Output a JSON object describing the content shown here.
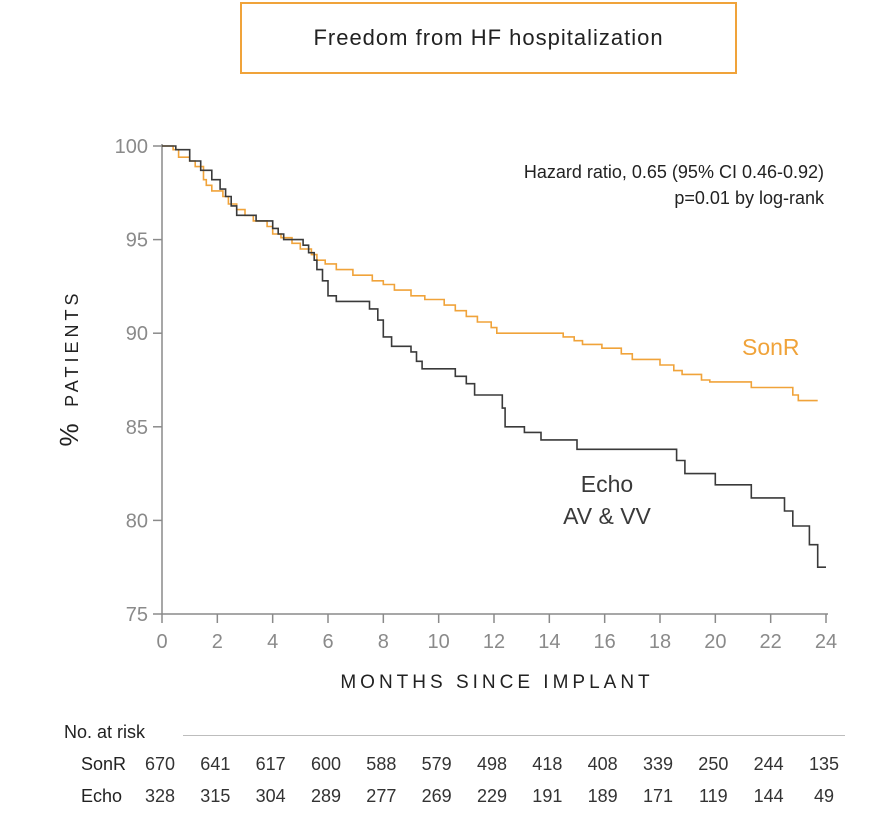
{
  "title": "Freedom from HF hospitalization",
  "annotation": {
    "line1": "Hazard ratio, 0.65 (95% CI 0.46-0.92)",
    "line2": "p=0.01 by log-rank"
  },
  "colors": {
    "sonr": "#f0a33a",
    "echo": "#3a3a3a",
    "axis": "#8a8a8a",
    "title_border": "#f0a33a"
  },
  "chart_data": {
    "type": "line",
    "xlabel": "MONTHS SINCE IMPLANT",
    "ylabel_symbol": "%",
    "ylabel": "PATIENTS",
    "xlim": [
      0,
      24
    ],
    "ylim": [
      75,
      100
    ],
    "x_ticks": [
      "0",
      "2",
      "4",
      "6",
      "8",
      "10",
      "12",
      "14",
      "16",
      "18",
      "20",
      "22",
      "24"
    ],
    "y_ticks": [
      "75",
      "80",
      "85",
      "90",
      "95",
      "100"
    ],
    "grid": false,
    "series": [
      {
        "name": "SonR",
        "color": "#f0a33a",
        "step": true,
        "points": [
          [
            0,
            100
          ],
          [
            0.4,
            99.8
          ],
          [
            0.6,
            99.4
          ],
          [
            1.0,
            99.2
          ],
          [
            1.2,
            98.9
          ],
          [
            1.5,
            98.2
          ],
          [
            1.6,
            97.9
          ],
          [
            1.8,
            97.6
          ],
          [
            2.2,
            97.3
          ],
          [
            2.4,
            96.9
          ],
          [
            2.7,
            96.6
          ],
          [
            3.0,
            96.3
          ],
          [
            3.3,
            96.0
          ],
          [
            3.8,
            95.7
          ],
          [
            4.0,
            95.3
          ],
          [
            4.3,
            95.1
          ],
          [
            4.7,
            94.8
          ],
          [
            5.0,
            94.5
          ],
          [
            5.4,
            94.2
          ],
          [
            5.6,
            93.9
          ],
          [
            5.9,
            93.7
          ],
          [
            6.3,
            93.4
          ],
          [
            6.9,
            93.1
          ],
          [
            7.6,
            92.8
          ],
          [
            8.0,
            92.6
          ],
          [
            8.4,
            92.3
          ],
          [
            9.0,
            92.0
          ],
          [
            9.5,
            91.8
          ],
          [
            10.2,
            91.5
          ],
          [
            10.6,
            91.2
          ],
          [
            11.0,
            90.9
          ],
          [
            11.4,
            90.6
          ],
          [
            11.9,
            90.3
          ],
          [
            12.1,
            90.0
          ],
          [
            14.5,
            89.8
          ],
          [
            14.9,
            89.6
          ],
          [
            15.2,
            89.4
          ],
          [
            15.9,
            89.2
          ],
          [
            16.6,
            88.9
          ],
          [
            17.0,
            88.6
          ],
          [
            18.0,
            88.3
          ],
          [
            18.5,
            88.0
          ],
          [
            18.8,
            87.8
          ],
          [
            19.5,
            87.5
          ],
          [
            19.8,
            87.4
          ],
          [
            21.3,
            87.1
          ],
          [
            22.8,
            86.7
          ],
          [
            23.0,
            86.4
          ],
          [
            23.7,
            86.4
          ]
        ]
      },
      {
        "name": "Echo AV & VV",
        "color": "#3a3a3a",
        "step": true,
        "points": [
          [
            0,
            100
          ],
          [
            0.5,
            99.8
          ],
          [
            1.0,
            99.2
          ],
          [
            1.4,
            98.7
          ],
          [
            1.8,
            98.2
          ],
          [
            2.1,
            97.7
          ],
          [
            2.3,
            97.3
          ],
          [
            2.5,
            96.8
          ],
          [
            2.7,
            96.3
          ],
          [
            3.4,
            96.0
          ],
          [
            4.0,
            95.6
          ],
          [
            4.2,
            95.3
          ],
          [
            4.4,
            95.0
          ],
          [
            5.1,
            94.7
          ],
          [
            5.3,
            94.3
          ],
          [
            5.5,
            93.9
          ],
          [
            5.6,
            93.4
          ],
          [
            5.8,
            92.8
          ],
          [
            6.0,
            92.0
          ],
          [
            6.3,
            91.7
          ],
          [
            7.5,
            91.3
          ],
          [
            7.8,
            90.7
          ],
          [
            8.0,
            89.8
          ],
          [
            8.3,
            89.3
          ],
          [
            9.0,
            89.0
          ],
          [
            9.2,
            88.5
          ],
          [
            9.4,
            88.1
          ],
          [
            10.6,
            87.7
          ],
          [
            11.0,
            87.3
          ],
          [
            11.3,
            86.7
          ],
          [
            12.3,
            86.0
          ],
          [
            12.4,
            85.0
          ],
          [
            13.1,
            84.7
          ],
          [
            13.7,
            84.3
          ],
          [
            15.0,
            83.8
          ],
          [
            18.6,
            83.2
          ],
          [
            18.9,
            82.5
          ],
          [
            20.0,
            81.9
          ],
          [
            21.3,
            81.2
          ],
          [
            22.5,
            80.5
          ],
          [
            22.8,
            79.7
          ],
          [
            23.4,
            78.7
          ],
          [
            23.7,
            77.5
          ],
          [
            24.0,
            77.5
          ]
        ]
      }
    ],
    "series_labels": {
      "sonr": "SonR",
      "echo_line1": "Echo",
      "echo_line2": "AV & VV"
    }
  },
  "risk_table": {
    "header": "No. at risk",
    "rows": [
      {
        "label": "SonR",
        "values": [
          "670",
          "641",
          "617",
          "600",
          "588",
          "579",
          "498",
          "418",
          "408",
          "339",
          "250",
          "244",
          "135"
        ]
      },
      {
        "label": "Echo",
        "values": [
          "328",
          "315",
          "304",
          "289",
          "277",
          "269",
          "229",
          "191",
          "189",
          "171",
          "119",
          "144",
          "49"
        ]
      }
    ]
  }
}
